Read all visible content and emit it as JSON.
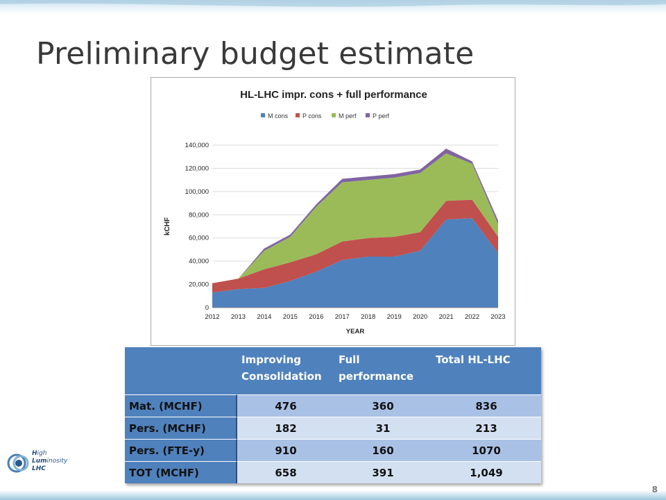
{
  "slide": {
    "title": "Preliminary budget estimate",
    "page_number": "8"
  },
  "logo": {
    "line1_a": "H",
    "line1_b": "igh",
    "line2_a": "Lum",
    "line2_b": "inosity",
    "line3": "LHC"
  },
  "chart_data": {
    "type": "area",
    "title": "HL-LHC impr. cons + full performance",
    "xlabel": "YEAR",
    "ylabel": "kCHF",
    "x": [
      "2012",
      "2013",
      "2014",
      "2015",
      "2016",
      "2017",
      "2018",
      "2019",
      "2020",
      "2021",
      "2022",
      "2023"
    ],
    "ylim": [
      0,
      140000
    ],
    "yticks": [
      "0",
      "20,000",
      "40,000",
      "60,000",
      "80,000",
      "100,000",
      "120,000",
      "140,000"
    ],
    "stacked": true,
    "legend_position": "top",
    "series": [
      {
        "name": "M cons",
        "color": "#4f81bd",
        "values": [
          13000,
          16000,
          17000,
          23000,
          31000,
          41000,
          44000,
          44000,
          49000,
          76000,
          77000,
          47000
        ]
      },
      {
        "name": "P cons",
        "color": "#c0504d",
        "values": [
          8000,
          9000,
          16000,
          16000,
          15000,
          16000,
          16000,
          17000,
          16000,
          16000,
          16000,
          14000
        ]
      },
      {
        "name": "M perf",
        "color": "#9bbb59",
        "values": [
          0,
          0,
          16000,
          22000,
          41000,
          51000,
          50000,
          51000,
          51000,
          41000,
          31000,
          11000
        ]
      },
      {
        "name": "P perf",
        "color": "#8064a2",
        "values": [
          0,
          0,
          2000,
          2000,
          2000,
          3000,
          3000,
          3000,
          3000,
          4000,
          2000,
          3000
        ]
      }
    ]
  },
  "table": {
    "headers": [
      "",
      "Improving Consolidation",
      "Full performance",
      "Total HL-LHC"
    ],
    "rows": [
      [
        "Mat. (MCHF)",
        "476",
        "360",
        "836"
      ],
      [
        "Pers. (MCHF)",
        "182",
        "31",
        "213"
      ],
      [
        "Pers. (FTE-y)",
        "910",
        "160",
        "1070"
      ],
      [
        "TOT (MCHF)",
        "658",
        "391",
        "1,049"
      ]
    ]
  }
}
